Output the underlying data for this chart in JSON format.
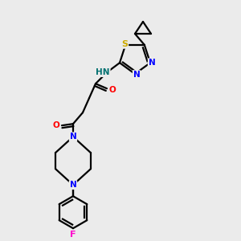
{
  "background_color": "#ebebeb",
  "bond_color": "#000000",
  "atom_colors": {
    "N": "#0000ff",
    "O": "#ff0000",
    "S": "#ccaa00",
    "F": "#ff00cc",
    "H": "#007070",
    "C": "#000000"
  }
}
